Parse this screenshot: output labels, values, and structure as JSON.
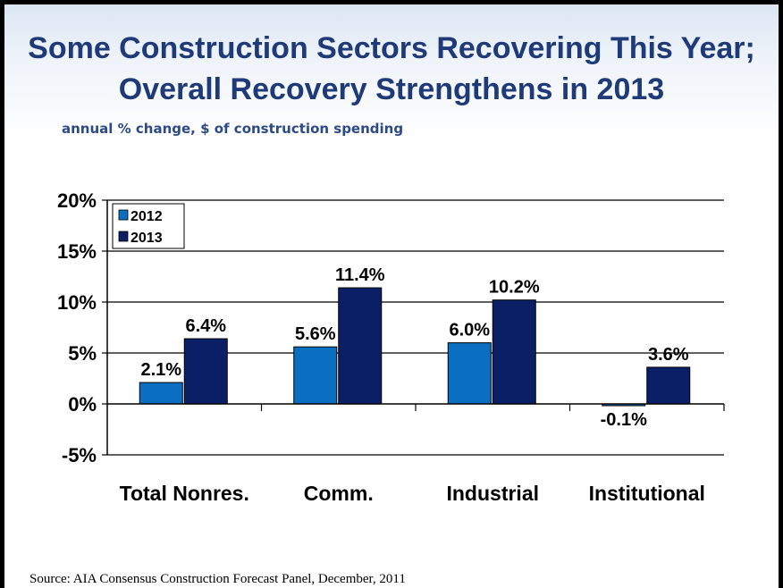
{
  "title": {
    "line1": "Some Construction Sectors Recovering This Year;",
    "line2": "Overall Recovery Strengthens in 2013"
  },
  "subtitle": "annual % change, $ of construction spending",
  "source": "Source:  AIA Consensus Construction Forecast Panel, December, 2011",
  "colors": {
    "series_2012": "#0a6fc0",
    "series_2013": "#0b1f66",
    "title": "#1f3a78"
  },
  "chart_data": {
    "type": "bar",
    "categories": [
      "Total Nonres.",
      "Comm.",
      "Industrial",
      "Institutional"
    ],
    "series": [
      {
        "name": "2012",
        "values": [
          2.1,
          5.6,
          6.0,
          -0.1
        ],
        "labels": [
          "2.1%",
          "5.6%",
          "6.0%",
          "-0.1%"
        ]
      },
      {
        "name": "2013",
        "values": [
          6.4,
          11.4,
          10.2,
          3.6
        ],
        "labels": [
          "6.4%",
          "11.4%",
          "10.2%",
          "3.6%"
        ]
      }
    ],
    "ylim": [
      -5,
      20
    ],
    "yticks": [
      20,
      15,
      10,
      5,
      0,
      -5
    ],
    "ytick_labels": [
      "20%",
      "15%",
      "10%",
      "5%",
      "0%",
      "-5%"
    ],
    "grid": true,
    "legend": "top-left",
    "xlabel": "",
    "ylabel": ""
  }
}
